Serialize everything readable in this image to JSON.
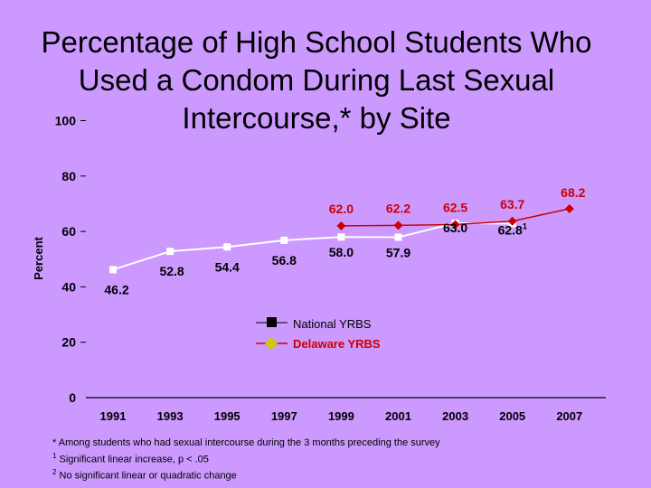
{
  "title_lines": [
    "Percentage of High School Students Who",
    "Used a Condom During Last Sexual",
    "Intercourse,* by Site"
  ],
  "colors": {
    "background": "#cc99ff",
    "national": "#ffffff",
    "delaware": "#cc0000"
  },
  "chart_data": {
    "type": "line",
    "ylabel": "Percent",
    "ylim": [
      0,
      100
    ],
    "yticks": [
      0,
      20,
      40,
      60,
      80,
      100
    ],
    "categories": [
      "1991",
      "1993",
      "1995",
      "1997",
      "1999",
      "2001",
      "2003",
      "2005",
      "2007"
    ],
    "series": [
      {
        "name": "National YRBS",
        "values": [
          46.2,
          52.8,
          54.4,
          56.8,
          58.0,
          57.9,
          63.0,
          62.8,
          null
        ],
        "labels": [
          "46.2",
          "52.8",
          "54.4",
          "56.8",
          "58.0",
          "57.9",
          "63.0",
          "62.8",
          ""
        ],
        "marker": "square"
      },
      {
        "name": "Delaware YRBS",
        "values": [
          null,
          null,
          null,
          null,
          62.0,
          62.2,
          62.5,
          63.7,
          68.2
        ],
        "labels": [
          "",
          "",
          "",
          "",
          "62.0",
          "62.2",
          "62.5",
          "63.7",
          "68.2"
        ],
        "marker": "diamond"
      }
    ],
    "label_superscripts": {
      "national_2005": "1"
    },
    "grid": false,
    "legend": "center"
  },
  "footnotes": [
    {
      "marker": "",
      "text": "* Among students who had sexual intercourse during the 3 months preceding the survey"
    },
    {
      "marker": "1",
      "text": "Significant linear increase, p < .05"
    },
    {
      "marker": "2",
      "text": "No significant linear or quadratic change"
    }
  ]
}
